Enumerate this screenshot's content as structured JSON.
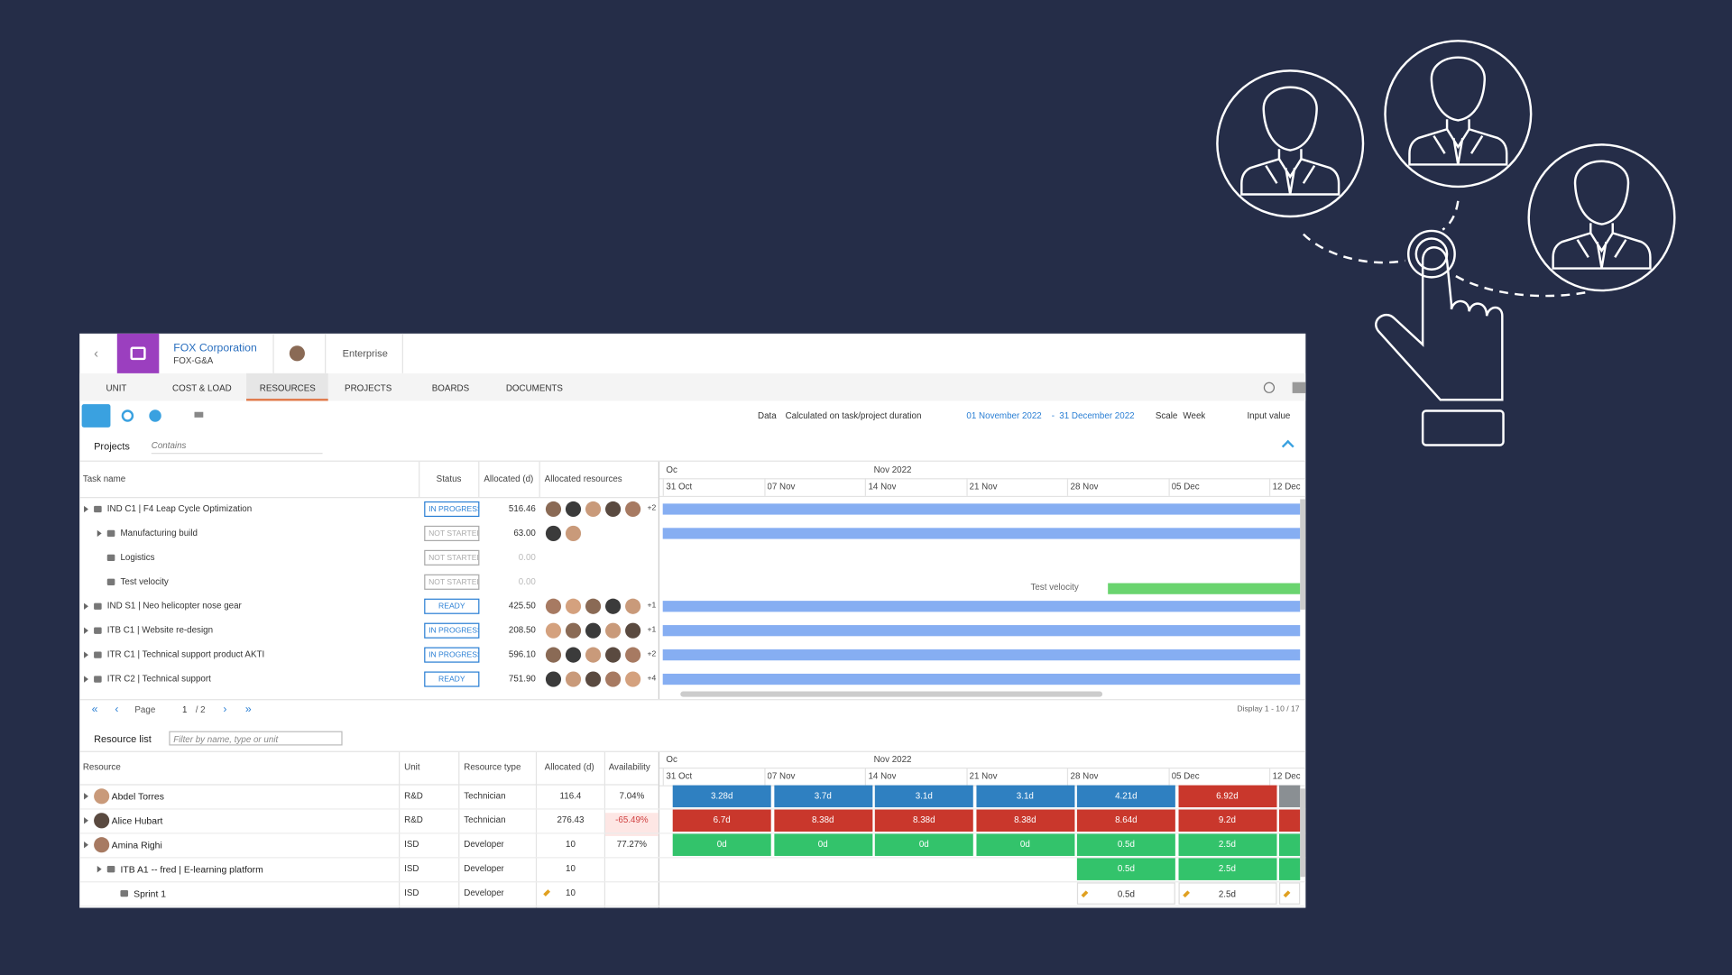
{
  "header": {
    "company": "FOX Corporation",
    "subcompany": "FOX-G&A",
    "plan": "Enterprise"
  },
  "tabs": {
    "items": [
      "UNIT",
      "COST & LOAD",
      "RESOURCES",
      "PROJECTS",
      "BOARDS",
      "DOCUMENTS"
    ],
    "active": 2
  },
  "toolbar": {
    "data_label": "Data",
    "data_value": "Calculated on task/project duration",
    "date_from": "01 November 2022",
    "date_sep": "-",
    "date_to": "31 December 2022",
    "scale_label": "Scale",
    "scale_value": "Week",
    "input_label": "Input value"
  },
  "projects": {
    "label": "Projects",
    "filter": "Contains",
    "columns": [
      "Task name",
      "Status",
      "Allocated (d)",
      "Allocated resources"
    ],
    "rows": [
      {
        "name": "IND C1 | F4 Leap Cycle Optimization",
        "status": "IN PROGRESS",
        "allocated": "516.46",
        "more": "+2",
        "level": 0
      },
      {
        "name": "Manufacturing build",
        "status": "NOT STARTED",
        "allocated": "63.00",
        "level": 1
      },
      {
        "name": "Logistics",
        "status": "NOT STARTED",
        "allocated": "0.00",
        "level": 1
      },
      {
        "name": "Test velocity",
        "status": "NOT STARTED",
        "allocated": "0.00",
        "level": 1
      },
      {
        "name": "IND S1 | Neo helicopter nose gear",
        "status": "READY",
        "allocated": "425.50",
        "more": "+1",
        "level": 0
      },
      {
        "name": "ITB C1 | Website re-design",
        "status": "IN PROGRESS",
        "allocated": "208.50",
        "more": "+1",
        "level": 0
      },
      {
        "name": "ITR C1 | Technical support product AKTI",
        "status": "IN PROGRESS",
        "allocated": "596.10",
        "more": "+2",
        "level": 0
      },
      {
        "name": "ITR C2 | Technical support",
        "status": "READY",
        "allocated": "751.90",
        "more": "+4",
        "level": 0
      }
    ],
    "months": [
      "Oc",
      "Nov 2022"
    ],
    "weeks": [
      "31 Oct",
      "07 Nov",
      "14 Nov",
      "21 Nov",
      "28 Nov",
      "05 Dec",
      "12 Dec"
    ],
    "bar_label": "Test velocity",
    "pager": {
      "page_label": "Page",
      "page": "1",
      "pages": "/ 2",
      "display": "Display 1 - 10 / 17"
    }
  },
  "resources": {
    "label": "Resource list",
    "filter": "Filter by name, type or unit",
    "columns": [
      "Resource",
      "Unit",
      "Resource type",
      "Allocated (d)",
      "Availability"
    ],
    "months": [
      "Oc",
      "Nov 2022"
    ],
    "weeks": [
      "31 Oct",
      "07 Nov",
      "14 Nov",
      "21 Nov",
      "28 Nov",
      "05 Dec",
      "12 Dec"
    ],
    "rows": [
      {
        "name": "Abdel Torres",
        "unit": "R&D",
        "type": "Technician",
        "allocated": "116.4",
        "availability": "7.04%",
        "level": 0,
        "cells": [
          {
            "text": "3.28d",
            "color": "#2f80c1"
          },
          {
            "text": "3.7d",
            "color": "#2f80c1"
          },
          {
            "text": "3.1d",
            "color": "#2f80c1"
          },
          {
            "text": "3.1d",
            "color": "#2f80c1"
          },
          {
            "text": "4.21d",
            "color": "#2f80c1"
          },
          {
            "text": "6.92d",
            "color": "#c9372c"
          },
          {
            "color": "#8a8f93"
          }
        ]
      },
      {
        "name": "Alice Hubart",
        "unit": "R&D",
        "type": "Technician",
        "allocated": "276.43",
        "availability": "-65.49%",
        "level": 0,
        "cells": [
          {
            "text": "6.7d",
            "color": "#c9372c"
          },
          {
            "text": "8.38d",
            "color": "#c9372c"
          },
          {
            "text": "8.38d",
            "color": "#c9372c"
          },
          {
            "text": "8.38d",
            "color": "#c9372c"
          },
          {
            "text": "8.64d",
            "color": "#c9372c"
          },
          {
            "text": "9.2d",
            "color": "#c9372c"
          },
          {
            "color": "#c9372c"
          }
        ]
      },
      {
        "name": "Amina Righi",
        "unit": "ISD",
        "type": "Developer",
        "allocated": "10",
        "availability": "77.27%",
        "level": 0,
        "cells": [
          {
            "text": "0d",
            "color": "#33c36b"
          },
          {
            "text": "0d",
            "color": "#33c36b"
          },
          {
            "text": "0d",
            "color": "#33c36b"
          },
          {
            "text": "0d",
            "color": "#33c36b"
          },
          {
            "text": "0.5d",
            "color": "#33c36b"
          },
          {
            "text": "2.5d",
            "color": "#33c36b"
          },
          {
            "color": "#33c36b"
          }
        ]
      },
      {
        "name": "ITB A1 -- fred | E-learning platform",
        "unit": "ISD",
        "type": "Developer",
        "allocated": "10",
        "level": 1,
        "cells": [
          null,
          null,
          null,
          null,
          {
            "text": "0.5d",
            "color": "#33c36b"
          },
          {
            "text": "2.5d",
            "color": "#33c36b"
          },
          {
            "color": "#33c36b"
          }
        ]
      },
      {
        "name": "Sprint 1",
        "unit": "ISD",
        "type": "Developer",
        "allocated": "10",
        "level": 2,
        "cells": [
          null,
          null,
          null,
          null,
          {
            "text": "0.5d",
            "color": "#ffffff"
          },
          {
            "text": "2.5d",
            "color": "#ffffff"
          },
          {
            "color": "#ffffff"
          }
        ]
      }
    ]
  }
}
